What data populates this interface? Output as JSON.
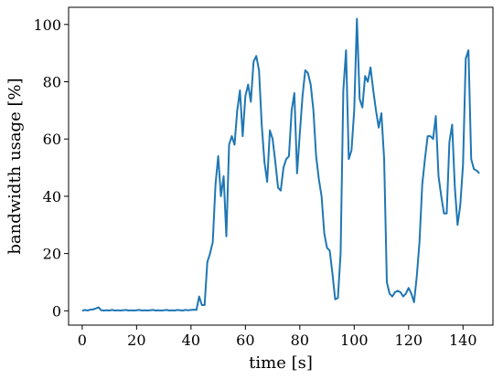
{
  "chart_data": {
    "type": "line",
    "title": "",
    "xlabel": "time [s]",
    "ylabel": "bandwidth usage [%]",
    "xlim": [
      -5,
      151
    ],
    "ylim": [
      -5,
      106
    ],
    "xticks": [
      0,
      20,
      40,
      60,
      80,
      100,
      120,
      140
    ],
    "yticks": [
      0,
      20,
      40,
      60,
      80,
      100
    ],
    "grid": false,
    "legend": "none",
    "series": [
      {
        "color": "#1f77b4",
        "x": [
          0,
          1,
          2,
          3,
          4,
          5,
          6,
          7,
          8,
          9,
          10,
          11,
          12,
          13,
          14,
          15,
          16,
          17,
          18,
          19,
          20,
          21,
          22,
          23,
          24,
          25,
          26,
          27,
          28,
          29,
          30,
          31,
          32,
          33,
          34,
          35,
          36,
          37,
          38,
          39,
          40,
          41,
          42,
          43,
          44,
          45,
          46,
          47,
          48,
          49,
          50,
          51,
          52,
          53,
          54,
          55,
          56,
          57,
          58,
          59,
          60,
          61,
          62,
          63,
          64,
          65,
          66,
          67,
          68,
          69,
          70,
          71,
          72,
          73,
          74,
          75,
          76,
          77,
          78,
          79,
          80,
          81,
          82,
          83,
          84,
          85,
          86,
          87,
          88,
          89,
          90,
          91,
          92,
          93,
          94,
          95,
          96,
          97,
          98,
          99,
          100,
          101,
          102,
          103,
          104,
          105,
          106,
          107,
          108,
          109,
          110,
          111,
          112,
          113,
          114,
          115,
          116,
          117,
          118,
          119,
          120,
          121,
          122,
          123,
          124,
          125,
          126,
          127,
          128,
          129,
          130,
          131,
          132,
          133,
          134,
          135,
          136,
          137,
          138,
          139,
          140,
          141,
          142,
          143,
          144,
          145,
          146
        ],
        "y": [
          0,
          0.3,
          0.1,
          0.4,
          0.5,
          0.8,
          1.2,
          0.2,
          0.1,
          0.2,
          0.1,
          0.3,
          0.1,
          0.2,
          0.1,
          0.2,
          0.3,
          0.1,
          0.2,
          0.1,
          0.2,
          0.3,
          0.1,
          0.2,
          0.1,
          0.2,
          0.3,
          0.1,
          0.2,
          0.1,
          0.2,
          0.3,
          0.1,
          0.2,
          0.1,
          0.3,
          0.2,
          0.1,
          0.3,
          0.2,
          0.3,
          0.4,
          0.3,
          5,
          2,
          2,
          17,
          20,
          24,
          44,
          54,
          40,
          47,
          26,
          58,
          61,
          58,
          70,
          77,
          61,
          75,
          79,
          73,
          87,
          89,
          84,
          65,
          52,
          45,
          63,
          60,
          52,
          43,
          42,
          50,
          53,
          54,
          70,
          76,
          48,
          62,
          75,
          84,
          83,
          79,
          70,
          54,
          46,
          40,
          27,
          22,
          21,
          13,
          4,
          4.5,
          20,
          77,
          91,
          53,
          56,
          70,
          102,
          74,
          71,
          82,
          80,
          85,
          77,
          70,
          64,
          69,
          53,
          10,
          6,
          5,
          6.5,
          7,
          6.5,
          5,
          6,
          8,
          6,
          3,
          12,
          24,
          44,
          53,
          61,
          61,
          60,
          68,
          47,
          40,
          34,
          34,
          59,
          65,
          43,
          30,
          37,
          51,
          88,
          91,
          53,
          49.5,
          49,
          48
        ]
      }
    ]
  }
}
